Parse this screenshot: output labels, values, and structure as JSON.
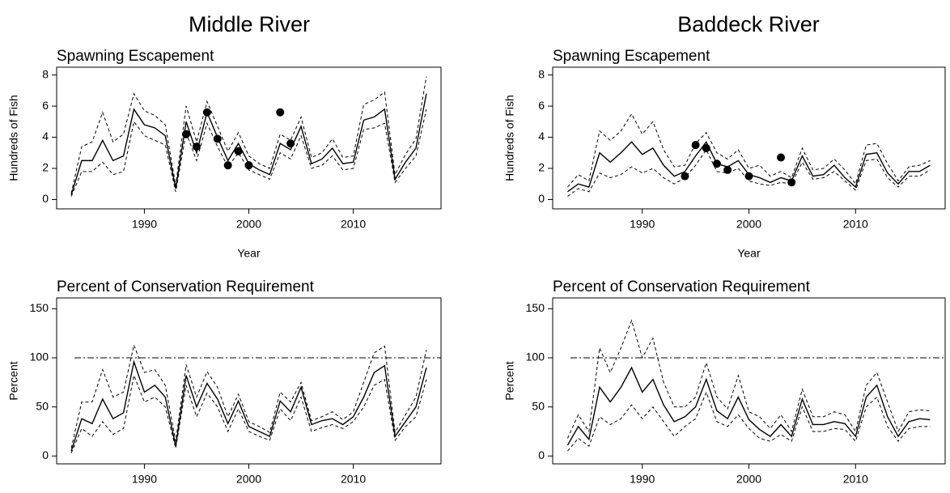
{
  "column_titles": [
    "Middle River",
    "Baddeck River"
  ],
  "chart_data": [
    {
      "type": "line",
      "title": "Spawning Escapement",
      "xlabel": "Year",
      "ylabel": "Hundreds of Fish",
      "x": [
        1983,
        1984,
        1985,
        1986,
        1987,
        1988,
        1989,
        1990,
        1991,
        1992,
        1993,
        1994,
        1995,
        1996,
        1997,
        1998,
        1999,
        2000,
        2001,
        2002,
        2003,
        2004,
        2005,
        2006,
        2007,
        2008,
        2009,
        2010,
        2011,
        2012,
        2013,
        2014,
        2015,
        2016,
        2017
      ],
      "xlim": [
        1981.6,
        2018.4
      ],
      "xticks": [
        1990,
        2000,
        2010
      ],
      "ylim": [
        -0.6,
        8.5
      ],
      "yticks": [
        0,
        2,
        4,
        6,
        8
      ],
      "series": [
        {
          "color": "#000000",
          "dashed": false,
          "values": [
            0.3,
            2.5,
            2.5,
            3.8,
            2.5,
            2.8,
            5.8,
            4.8,
            4.6,
            4.1,
            0.7,
            5.0,
            3.0,
            5.6,
            4.0,
            2.5,
            3.6,
            2.3,
            1.9,
            1.6,
            3.6,
            3.2,
            4.7,
            2.3,
            2.6,
            3.3,
            2.3,
            2.4,
            5.1,
            5.3,
            5.8,
            1.3,
            2.4,
            3.3,
            6.8
          ]
        },
        {
          "color": "#000000",
          "dashed": true,
          "values": [
            0.4,
            3.4,
            3.7,
            5.6,
            3.7,
            4.2,
            6.8,
            5.7,
            5.4,
            4.8,
            0.9,
            6.0,
            3.7,
            6.3,
            4.7,
            3.1,
            4.3,
            2.8,
            2.3,
            2.0,
            4.2,
            3.8,
            5.3,
            2.7,
            3.0,
            3.9,
            2.7,
            2.8,
            6.1,
            6.4,
            6.9,
            1.6,
            2.9,
            3.9,
            7.9
          ]
        },
        {
          "color": "#000000",
          "dashed": true,
          "values": [
            0.2,
            1.8,
            1.8,
            2.4,
            1.6,
            1.8,
            5.0,
            4.1,
            3.8,
            3.5,
            0.5,
            4.3,
            2.5,
            4.9,
            3.4,
            2.1,
            3.0,
            1.9,
            1.6,
            1.3,
            3.0,
            2.6,
            4.1,
            2.0,
            2.2,
            2.8,
            1.9,
            2.0,
            4.5,
            4.6,
            4.9,
            1.1,
            2.0,
            2.8,
            5.8
          ]
        }
      ],
      "points": {
        "color": "#000000",
        "x": [
          1994,
          1995,
          1996,
          1997,
          1998,
          1999,
          2000,
          2003,
          2004
        ],
        "values": [
          4.2,
          3.4,
          5.6,
          3.9,
          2.2,
          3.1,
          2.2,
          5.6,
          3.6
        ]
      }
    },
    {
      "type": "line",
      "title": "Spawning Escapement",
      "xlabel": "Year",
      "ylabel": "Hundreds of Fish",
      "x": [
        1983,
        1984,
        1985,
        1986,
        1987,
        1988,
        1989,
        1990,
        1991,
        1992,
        1993,
        1994,
        1995,
        1996,
        1997,
        1998,
        1999,
        2000,
        2001,
        2002,
        2003,
        2004,
        2005,
        2006,
        2007,
        2008,
        2009,
        2010,
        2011,
        2012,
        2013,
        2014,
        2015,
        2016,
        2017
      ],
      "xlim": [
        1981.6,
        2018.4
      ],
      "xticks": [
        1990,
        2000,
        2010
      ],
      "ylim": [
        -0.6,
        8.5
      ],
      "yticks": [
        0,
        2,
        4,
        6,
        8
      ],
      "series": [
        {
          "color": "#000000",
          "dashed": false,
          "values": [
            0.5,
            1.0,
            0.8,
            3.0,
            2.4,
            3.0,
            3.7,
            2.9,
            3.3,
            2.2,
            1.5,
            1.8,
            2.8,
            3.7,
            2.3,
            2.1,
            2.5,
            1.6,
            1.4,
            1.1,
            1.4,
            1.2,
            2.8,
            1.5,
            1.6,
            2.2,
            1.4,
            0.8,
            2.9,
            3.0,
            1.7,
            1.0,
            1.8,
            1.8,
            2.2
          ]
        },
        {
          "color": "#000000",
          "dashed": true,
          "values": [
            0.8,
            1.6,
            1.2,
            4.4,
            3.8,
            4.4,
            5.5,
            4.2,
            5.0,
            3.2,
            2.1,
            2.2,
            3.6,
            4.3,
            3.0,
            2.6,
            3.2,
            2.0,
            2.2,
            1.5,
            1.8,
            1.4,
            3.3,
            1.9,
            2.0,
            2.6,
            1.9,
            1.0,
            3.5,
            3.6,
            2.3,
            1.2,
            2.1,
            2.2,
            2.5
          ]
        },
        {
          "color": "#000000",
          "dashed": true,
          "values": [
            0.2,
            0.7,
            0.5,
            1.7,
            1.4,
            1.6,
            2.1,
            1.7,
            2.0,
            1.4,
            1.0,
            1.4,
            2.2,
            3.2,
            1.8,
            1.7,
            2.0,
            1.2,
            1.0,
            0.9,
            1.1,
            1.0,
            2.4,
            1.3,
            1.4,
            1.8,
            1.2,
            0.6,
            2.5,
            2.6,
            1.4,
            0.8,
            1.5,
            1.5,
            1.9
          ]
        }
      ],
      "points": {
        "color": "#000000",
        "x": [
          1994,
          1995,
          1996,
          1997,
          1998,
          2000,
          2003,
          2004
        ],
        "values": [
          1.5,
          3.5,
          3.3,
          2.3,
          1.9,
          1.5,
          2.7,
          1.1
        ]
      }
    },
    {
      "type": "line",
      "title": "Percent of Conservation Requirement",
      "xlabel": "Year",
      "ylabel": "Percent",
      "x": [
        1983,
        1984,
        1985,
        1986,
        1987,
        1988,
        1989,
        1990,
        1991,
        1992,
        1993,
        1994,
        1995,
        1996,
        1997,
        1998,
        1999,
        2000,
        2001,
        2002,
        2003,
        2004,
        2005,
        2006,
        2007,
        2008,
        2009,
        2010,
        2011,
        2012,
        2013,
        2014,
        2015,
        2016,
        2017
      ],
      "xlim": [
        1981.6,
        2018.4
      ],
      "xticks": [
        1990,
        2000,
        2010
      ],
      "ylim": [
        -8,
        161
      ],
      "yticks": [
        0,
        50,
        100,
        150
      ],
      "reference_line": 100,
      "series": [
        {
          "color": "#000000",
          "dashed": false,
          "values": [
            5,
            38,
            33,
            58,
            38,
            44,
            96,
            65,
            72,
            60,
            10,
            82,
            50,
            74,
            58,
            33,
            56,
            30,
            25,
            20,
            56,
            45,
            70,
            32,
            36,
            38,
            32,
            40,
            60,
            85,
            92,
            20,
            35,
            50,
            90
          ]
        },
        {
          "color": "#000000",
          "dashed": true,
          "values": [
            8,
            55,
            55,
            88,
            60,
            65,
            113,
            85,
            88,
            72,
            15,
            93,
            60,
            86,
            70,
            40,
            63,
            35,
            30,
            24,
            65,
            55,
            75,
            36,
            40,
            45,
            37,
            45,
            75,
            105,
            112,
            24,
            42,
            60,
            108
          ]
        },
        {
          "color": "#000000",
          "dashed": true,
          "values": [
            3,
            28,
            20,
            35,
            22,
            28,
            82,
            55,
            60,
            50,
            8,
            72,
            40,
            64,
            50,
            25,
            48,
            25,
            20,
            16,
            48,
            36,
            60,
            25,
            29,
            32,
            28,
            35,
            50,
            72,
            78,
            16,
            30,
            40,
            78
          ]
        }
      ]
    },
    {
      "type": "line",
      "title": "Percent of Conservation Requirement",
      "xlabel": "Year",
      "ylabel": "Percent",
      "x": [
        1983,
        1984,
        1985,
        1986,
        1987,
        1988,
        1989,
        1990,
        1991,
        1992,
        1993,
        1994,
        1995,
        1996,
        1997,
        1998,
        1999,
        2000,
        2001,
        2002,
        2003,
        2004,
        2005,
        2006,
        2007,
        2008,
        2009,
        2010,
        2011,
        2012,
        2013,
        2014,
        2015,
        2016,
        2017
      ],
      "xlim": [
        1981.6,
        2018.4
      ],
      "xticks": [
        1990,
        2000,
        2010
      ],
      "ylim": [
        -8,
        161
      ],
      "yticks": [
        0,
        50,
        100,
        150
      ],
      "reference_line": 100,
      "series": [
        {
          "color": "#000000",
          "dashed": false,
          "values": [
            11,
            30,
            17,
            70,
            55,
            70,
            90,
            65,
            78,
            52,
            35,
            40,
            50,
            78,
            46,
            38,
            60,
            37,
            27,
            20,
            32,
            20,
            58,
            32,
            32,
            35,
            33,
            20,
            60,
            72,
            40,
            20,
            35,
            38,
            37
          ]
        },
        {
          "color": "#000000",
          "dashed": true,
          "values": [
            18,
            42,
            25,
            110,
            85,
            110,
            138,
            100,
            120,
            75,
            50,
            50,
            60,
            95,
            60,
            48,
            82,
            45,
            40,
            28,
            42,
            25,
            68,
            40,
            40,
            45,
            42,
            25,
            72,
            85,
            55,
            25,
            45,
            47,
            46
          ]
        },
        {
          "color": "#000000",
          "dashed": true,
          "values": [
            5,
            18,
            10,
            40,
            32,
            38,
            52,
            38,
            50,
            35,
            20,
            30,
            38,
            65,
            35,
            30,
            42,
            28,
            18,
            15,
            22,
            15,
            50,
            25,
            25,
            28,
            27,
            15,
            50,
            60,
            30,
            15,
            28,
            30,
            30
          ]
        }
      ]
    }
  ]
}
